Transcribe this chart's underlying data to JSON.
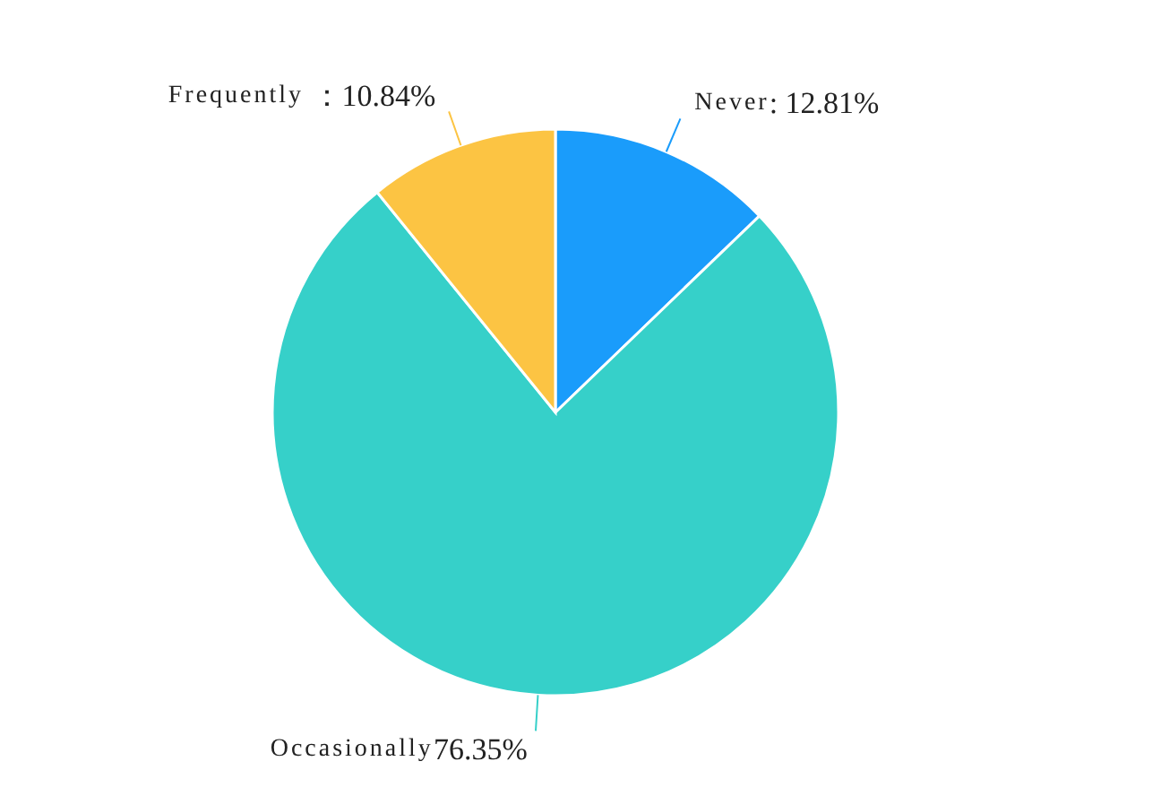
{
  "chart_data": {
    "type": "pie",
    "categories": [
      "Never",
      "Occasionally",
      "Frequently"
    ],
    "values": [
      12.81,
      76.35,
      10.84
    ],
    "colors": [
      "#1a9cfb",
      "#36d0c9",
      "#fcc443"
    ],
    "value_labels": [
      ": 12.81%",
      "76.35%",
      " ：10.84%"
    ]
  }
}
